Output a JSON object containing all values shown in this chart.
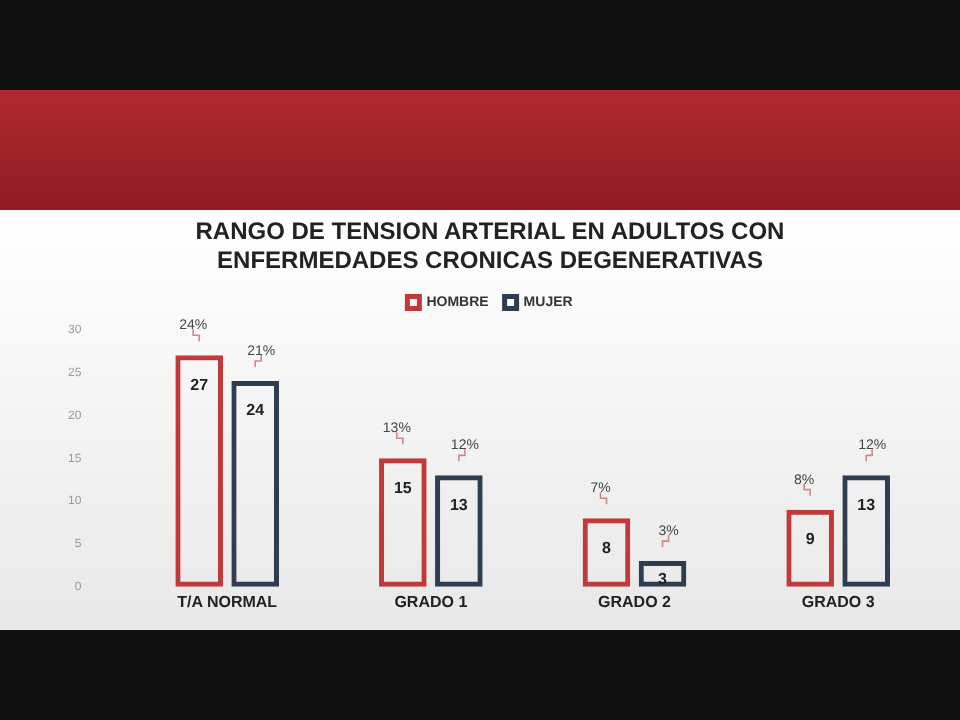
{
  "chart_data": {
    "type": "bar",
    "title": [
      "RANGO DE TENSION ARTERIAL EN ADULTOS CON",
      "ENFERMEDADES CRONICAS DEGENERATIVAS"
    ],
    "categories": [
      "T/A NORMAL",
      "GRADO 1",
      "GRADO 2",
      "GRADO 3"
    ],
    "series": [
      {
        "name": "HOMBRE",
        "color": "#c0393b",
        "values": [
          27,
          15,
          8,
          9
        ]
      },
      {
        "name": "MUJER",
        "color": "#2e3e50",
        "values": [
          24,
          13,
          3,
          13
        ]
      }
    ],
    "ylim": [
      0,
      30
    ],
    "yticks": [
      0,
      5,
      10,
      15,
      20,
      25,
      30
    ],
    "grid": false,
    "legend": "top",
    "data_labels": true,
    "annotations": [
      {
        "text": "24%",
        "x": "T/A NORMAL",
        "y": 27
      },
      {
        "text": "21%",
        "x": "T/A NORMAL",
        "y": 24
      },
      {
        "text": "13%",
        "x": "GRADO 1",
        "y": 15
      },
      {
        "text": "12%",
        "x": "GRADO 1",
        "y": 13
      },
      {
        "text": "7%",
        "x": "GRADO 2",
        "y": 8
      },
      {
        "text": "3%",
        "x": "GRADO 2",
        "y": 3
      },
      {
        "text": "8%",
        "x": "GRADO 3",
        "y": 9
      },
      {
        "text": "12%",
        "x": "GRADO 3",
        "y": 13
      }
    ]
  }
}
